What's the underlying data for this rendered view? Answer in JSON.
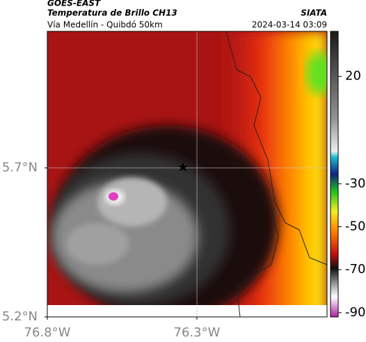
{
  "header": {
    "source": "GOES-EAST",
    "title": "Temperatura de Brillo CH13",
    "org": "SIATA",
    "subtitle": "Vía Medellín - Quibdó 50km",
    "datetime": "2024-03-14 03:09"
  },
  "map": {
    "xlim": [
      -76.8,
      -75.865
    ],
    "ylim": [
      5.2,
      6.158
    ],
    "xticks": [
      {
        "value": -76.8,
        "label": "76.8°W"
      },
      {
        "value": -76.3,
        "label": "76.3°W"
      }
    ],
    "yticks": [
      {
        "value": 5.7,
        "label": "5.7°N"
      },
      {
        "value": 5.2,
        "label": "5.2°N"
      }
    ]
  },
  "colorbar": {
    "lim": [
      -92,
      41
    ],
    "ticks": [
      20,
      -30,
      -50,
      -70,
      -90
    ]
  }
}
